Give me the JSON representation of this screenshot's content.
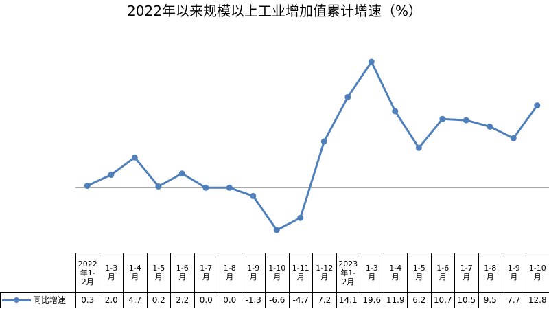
{
  "chart_data": {
    "type": "line",
    "title": "2022年以来规模以上工业增加值累计增速（%）",
    "categories": [
      "2022\n年1-\n2月",
      "1-3\n月",
      "1-4\n月",
      "1-5\n月",
      "1-6\n月",
      "1-7\n月",
      "1-8\n月",
      "1-9\n月",
      "1-10\n月",
      "1-11\n月",
      "1-12\n月",
      "2023\n年1-\n2月",
      "1-3\n月",
      "1-4\n月",
      "1-5\n月",
      "1-6\n月",
      "1-7\n月",
      "1-8\n月",
      "1-9\n月",
      "1-10\n月"
    ],
    "series": [
      {
        "name": "同比增速",
        "color": "#4e7fbb",
        "values": [
          0.3,
          2.0,
          4.7,
          0.2,
          2.2,
          0.0,
          0.0,
          -1.3,
          -6.6,
          -4.7,
          7.2,
          14.1,
          19.6,
          11.9,
          6.2,
          10.7,
          10.5,
          9.5,
          7.7,
          12.8
        ]
      }
    ],
    "value_labels": [
      "0.3",
      "2.0",
      "4.7",
      "0.2",
      "2.2",
      "0.0",
      "0.0",
      "-1.3",
      "-6.6",
      "-4.7",
      "7.2",
      "14.1",
      "19.6",
      "11.9",
      "6.2",
      "10.7",
      "10.5",
      "9.5",
      "7.7",
      "12.8"
    ],
    "ylim": [
      -9,
      22
    ],
    "grid": false,
    "zero_line": true,
    "data_table": true
  }
}
